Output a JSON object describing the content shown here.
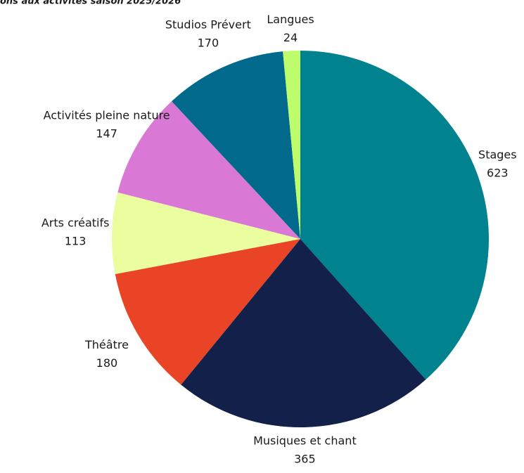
{
  "chart_data": {
    "type": "pie",
    "title": "ons aux activités saison 2025/2026",
    "categories": [
      "Stages",
      "Musiques et chant",
      "Théâtre",
      "Arts créatifs",
      "Activités pleine nature",
      "Studios Prévert",
      "Langues"
    ],
    "values": [
      623,
      365,
      180,
      113,
      147,
      170,
      24
    ],
    "colors": [
      "#00838f",
      "#13214a",
      "#ea4426",
      "#eafea0",
      "#da78d6",
      "#016a8c",
      "#bdfd6c"
    ]
  }
}
